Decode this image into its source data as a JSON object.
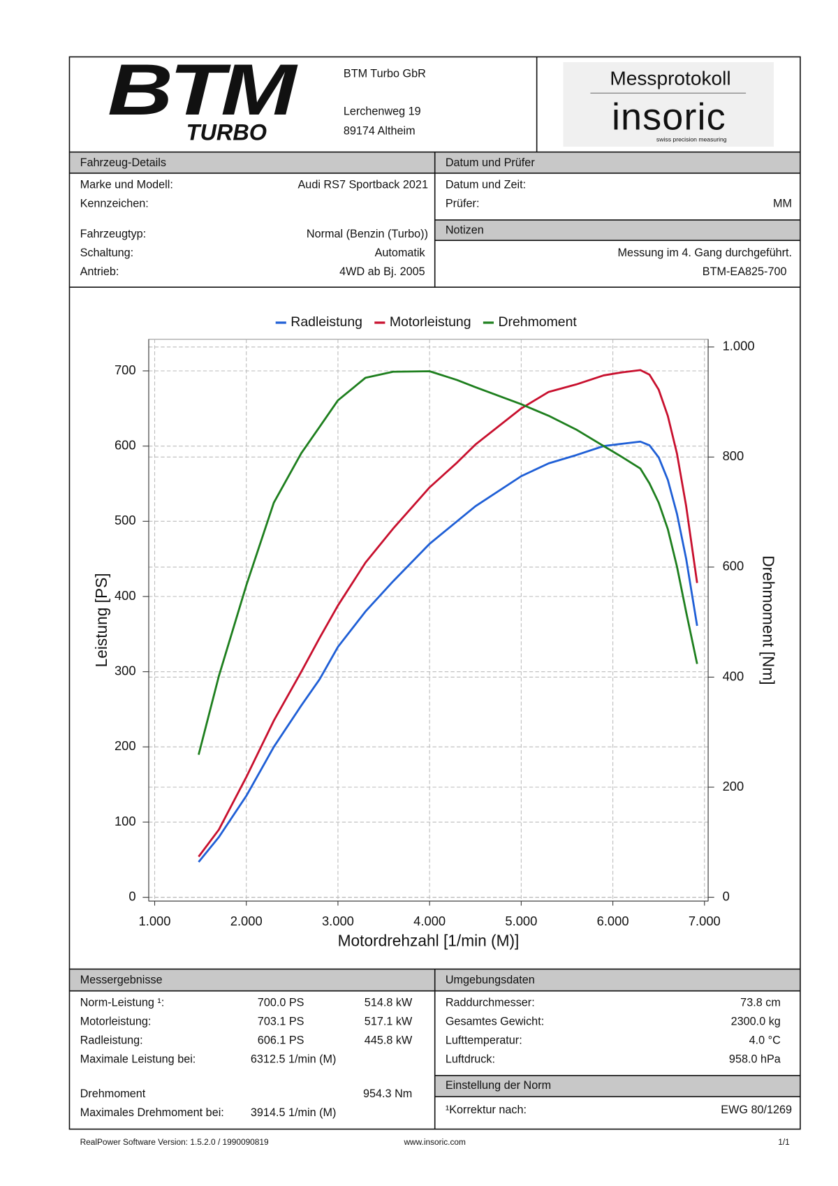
{
  "header": {
    "logo": {
      "mark": "BTM",
      "sub": "TURBO"
    },
    "company": "BTM Turbo GbR",
    "street": "Lerchenweg 19",
    "city": "89174 Altheim",
    "protocol": "Messprotokoll",
    "brand": "insoric",
    "tagline": "swiss precision measuring"
  },
  "vehicle": {
    "title": "Fahrzeug-Details",
    "rows": [
      {
        "label": "Marke und Modell:",
        "value": "Audi RS7 Sportback 2021"
      },
      {
        "label": "Kennzeichen:"
      },
      {
        "label": "Fahrzeugtyp:",
        "value": "Normal (Benzin (Turbo))"
      },
      {
        "label": "Schaltung:",
        "value": "Automatik"
      },
      {
        "label": "Antrieb:",
        "value": "4WD ab Bj. 2005"
      }
    ]
  },
  "inspection": {
    "title": "Datum und Prüfer",
    "rows": [
      {
        "label": "Datum und Zeit:"
      },
      {
        "label": "Prüfer:",
        "value": "MM"
      }
    ]
  },
  "notes": {
    "title": "Notizen",
    "lines": [
      "Messung im 4. Gang durchgeführt.",
      "BTM-EA825-700"
    ]
  },
  "chart_data": {
    "type": "line",
    "legend": "top",
    "grid": true,
    "x_label": "Motordrehzahl [1/min (M)]",
    "y_label": "Leistung [PS]",
    "y2_label": "Drehmoment [Nm]",
    "x": [
      1480,
      1700,
      2000,
      2300,
      2600,
      2800,
      3000,
      3300,
      3600,
      4000,
      4300,
      4500,
      5000,
      5300,
      5600,
      5900,
      6100,
      6300,
      6400,
      6500,
      6600,
      6700,
      6800,
      6920
    ],
    "series": [
      {
        "name": "Radleistung",
        "color": "#1f5fd6",
        "axis": "y",
        "values": [
          47,
          80,
          135,
          200,
          255,
          290,
          333,
          380,
          420,
          470,
          500,
          520,
          560,
          577,
          588,
          600,
          603,
          606,
          601,
          585,
          555,
          510,
          450,
          361
        ]
      },
      {
        "name": "Motorleistung",
        "color": "#c8102e",
        "axis": "y",
        "values": [
          54,
          90,
          160,
          235,
          300,
          345,
          388,
          445,
          490,
          545,
          578,
          602,
          650,
          672,
          682,
          694,
          698,
          701,
          695,
          675,
          640,
          590,
          520,
          418
        ]
      },
      {
        "name": "Drehmoment",
        "color": "#1e7f1e",
        "axis": "y2",
        "values": [
          259,
          402,
          567,
          717,
          807,
          855,
          903,
          944,
          955,
          956,
          940,
          927,
          896,
          875,
          850,
          820,
          800,
          779,
          752,
          717,
          669,
          601,
          518,
          424
        ]
      }
    ],
    "xlim": [
      935,
      7040
    ],
    "xticks": [
      {
        "value": 1000,
        "label": "1.000"
      },
      {
        "value": 2000,
        "label": "2.000"
      },
      {
        "value": 3000,
        "label": "3.000"
      },
      {
        "value": 4000,
        "label": "4.000"
      },
      {
        "value": 5000,
        "label": "5.000"
      },
      {
        "value": 6000,
        "label": "6.000"
      },
      {
        "value": 7000,
        "label": "7.000"
      }
    ],
    "ylim": [
      -5,
      742
    ],
    "yticks": [
      0,
      100,
      200,
      300,
      400,
      500,
      600,
      700
    ],
    "y2lim": [
      -7,
      1014
    ],
    "y2ticks": [
      0,
      200,
      400,
      600,
      800,
      {
        "value": 1000,
        "label": "1.000"
      }
    ]
  },
  "results": {
    "title": "Messergebnisse",
    "rows": [
      {
        "label": "Norm-Leistung ¹:",
        "ps": "700.0 PS",
        "kw": "514.8 kW",
        "color": "#c8102e"
      },
      {
        "label": "Motorleistung:",
        "ps": "703.1 PS",
        "kw": "517.1 kW",
        "color": "#c8102e"
      },
      {
        "label": "Radleistung:",
        "ps": "606.1 PS",
        "kw": "445.8 kW",
        "color": "#1f5fd6"
      },
      {
        "label": "Maximale Leistung bei:",
        "rpm": "6312.5 1/min (M)",
        "color": "#111111"
      },
      {
        "label": "Drehmoment",
        "kw": "954.3 Nm",
        "color": "#1e7f1e"
      },
      {
        "label": "Maximales Drehmoment bei:",
        "rpm": "3914.5 1/min (M)",
        "color": "#111111"
      }
    ]
  },
  "environment": {
    "title": "Umgebungsdaten",
    "rows": [
      {
        "label": "Raddurchmesser:",
        "value": "73.8 cm"
      },
      {
        "label": "Gesamtes Gewicht:",
        "value": "2300.0 kg"
      },
      {
        "label": "Lufttemperatur:",
        "value": "4.0 °C"
      },
      {
        "label": "Luftdruck:",
        "value": "958.0 hPa"
      }
    ]
  },
  "norm": {
    "title": "Einstellung der Norm",
    "rows": [
      {
        "label": "¹Korrektur nach:",
        "value": "EWG 80/1269"
      }
    ]
  },
  "footer": {
    "software": "RealPower Software Version: 1.5.2.0 / 1990090819",
    "url": "www.insoric.com",
    "page": "1/1"
  }
}
